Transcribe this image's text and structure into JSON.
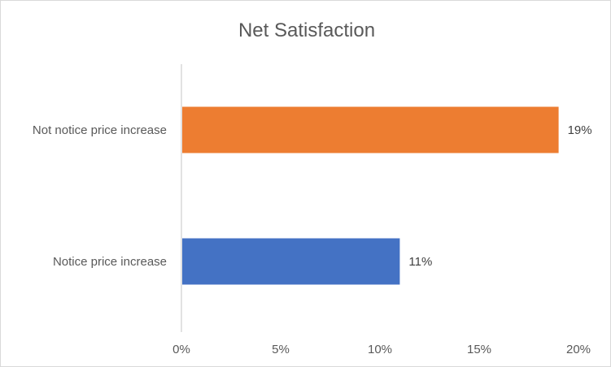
{
  "chart_data": {
    "type": "bar",
    "orientation": "horizontal",
    "title": "Net Satisfaction",
    "categories": [
      "Not notice price increase",
      "Notice price increase"
    ],
    "values": [
      19,
      11
    ],
    "data_labels": [
      "19%",
      "11%"
    ],
    "colors": [
      "#ED7D31",
      "#4472C4"
    ],
    "xlim": [
      0,
      20
    ],
    "xticks": [
      0,
      5,
      10,
      15,
      20
    ],
    "xtick_labels": [
      "0%",
      "5%",
      "10%",
      "15%",
      "20%"
    ],
    "grid": false,
    "legend": "none"
  }
}
